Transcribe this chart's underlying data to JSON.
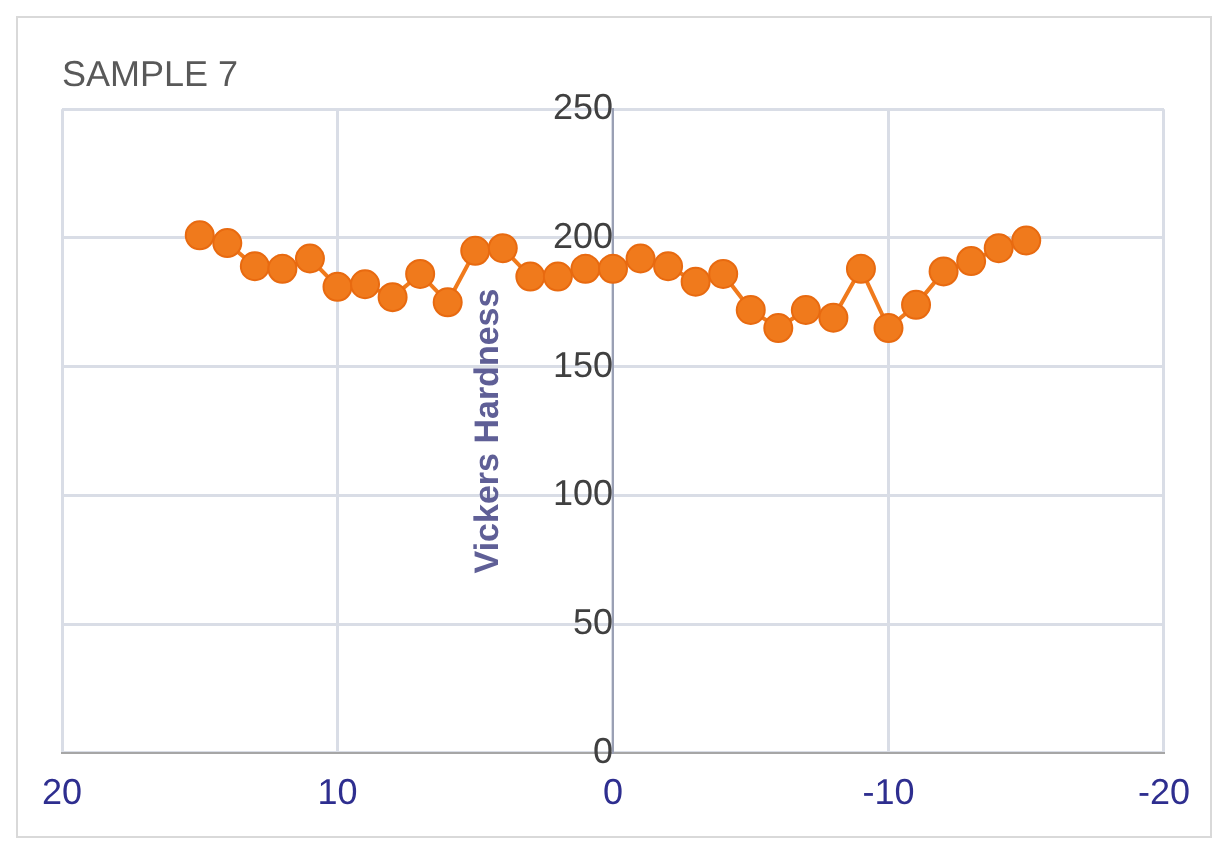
{
  "chart_data": {
    "type": "line",
    "title": "SAMPLE 7",
    "ylabel": "Vickers Hardness",
    "x": [
      15,
      14,
      13,
      12,
      11,
      10,
      9,
      8,
      7,
      6,
      5,
      4,
      3,
      2,
      1,
      0,
      -1,
      -2,
      -3,
      -4,
      -5,
      -6,
      -7,
      -8,
      -9,
      -10,
      -11,
      -12,
      -13,
      -14,
      -15
    ],
    "series": [
      {
        "color": "#f07a1c",
        "values": [
          201,
          198,
          189,
          188,
          192,
          181,
          182,
          177,
          186,
          175,
          195,
          196,
          185,
          185,
          188,
          188,
          192,
          189,
          183,
          186,
          172,
          165,
          172,
          169,
          188,
          165,
          174,
          187,
          191,
          196,
          199
        ]
      }
    ],
    "xlim": [
      20,
      -20
    ],
    "xticks": [
      20,
      10,
      0,
      -10,
      -20
    ],
    "ylim": [
      0,
      250
    ],
    "yticks": [
      0,
      50,
      100,
      150,
      200,
      250
    ],
    "grid": true,
    "legend": false,
    "marker": "circle",
    "line_style": "solid"
  }
}
